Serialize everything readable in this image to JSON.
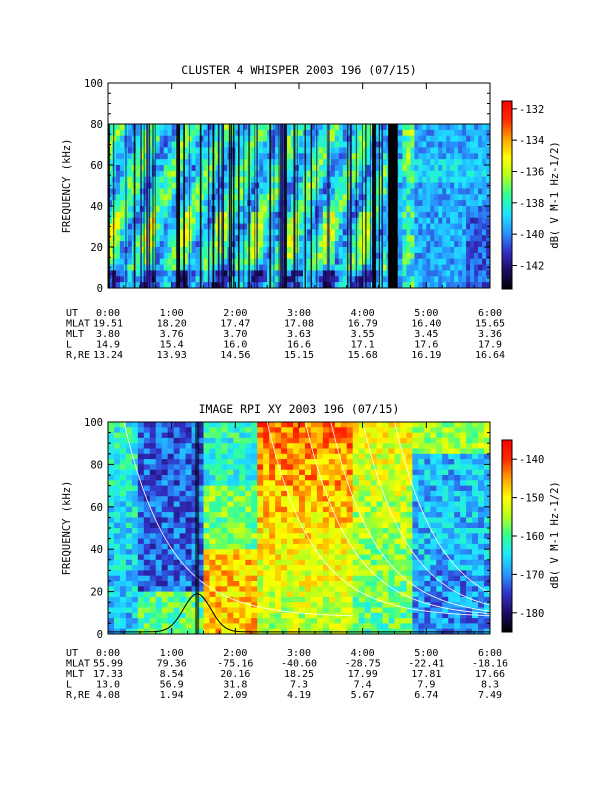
{
  "colors": {
    "palette": [
      "#000000",
      "#1e0a64",
      "#3232c8",
      "#2896ff",
      "#1ee6ff",
      "#32ff96",
      "#b4ff1e",
      "#ffff00",
      "#ffa000",
      "#ff2800",
      "#ff0000"
    ],
    "axes": "#000000",
    "overlay_lines": "#ffffff"
  },
  "chart_data": [
    {
      "type": "heatmap",
      "title": "CLUSTER 4 WHISPER 2003 196 (07/15)",
      "ylabel": "FREQUENCY (kHz)",
      "ylim": [
        0,
        100
      ],
      "yticks": [
        "0",
        "20",
        "40",
        "60",
        "80",
        "100"
      ],
      "data_extent_khz": [
        0,
        80
      ],
      "xlim_hours": [
        0,
        6
      ],
      "colorbar": {
        "label": "dB( V M-1 Hz-1/2)",
        "range": [
          -143.5,
          -131.5
        ],
        "ticks": [
          "-132",
          "-134",
          "-136",
          "-138",
          "-140",
          "-142"
        ],
        "tick_values": [
          -132,
          -134,
          -136,
          -138,
          -140,
          -142
        ]
      },
      "gap_hours": [
        4.4,
        4.55
      ],
      "ephemeris": {
        "labels": [
          "UT",
          "MLAT",
          "MLT",
          "L",
          "R,RE"
        ],
        "rows": [
          [
            "0:00",
            "1:00",
            "2:00",
            "3:00",
            "4:00",
            "5:00",
            "6:00"
          ],
          [
            "19.51",
            "18.20",
            "17.47",
            "17.08",
            "16.79",
            "16.40",
            "15.65"
          ],
          [
            "3.80",
            "3.76",
            "3.70",
            "3.63",
            "3.55",
            "3.45",
            "3.36"
          ],
          [
            "14.9",
            "15.4",
            "16.0",
            "16.6",
            "17.1",
            "17.6",
            "17.9"
          ],
          [
            "13.24",
            "13.93",
            "14.56",
            "15.15",
            "15.68",
            "16.19",
            "16.64"
          ]
        ]
      }
    },
    {
      "type": "heatmap",
      "title": "IMAGE RPI XY 2003 196 (07/15)",
      "ylabel": "FREQUENCY (kHz)",
      "ylim": [
        0,
        100
      ],
      "yticks": [
        "0",
        "20",
        "40",
        "60",
        "80",
        "100"
      ],
      "xlim_hours": [
        0,
        6
      ],
      "colorbar": {
        "label": "dB( V M-1 Hz-1/2)",
        "range": [
          -185,
          -135
        ],
        "ticks": [
          "-140",
          "-150",
          "-160",
          "-170",
          "-180"
        ],
        "tick_values": [
          -140,
          -150,
          -160,
          -170,
          -180
        ]
      },
      "overlay_curve_peak": {
        "hour": 1.4,
        "khz": 19
      },
      "ephemeris": {
        "labels": [
          "UT",
          "MLAT",
          "MLT",
          "L",
          "R,RE"
        ],
        "rows": [
          [
            "0:00",
            "1:00",
            "2:00",
            "3:00",
            "4:00",
            "5:00",
            "6:00"
          ],
          [
            "55.99",
            "79.36",
            "-75.16",
            "-40.60",
            "-28.75",
            "-22.41",
            "-18.16"
          ],
          [
            "17.33",
            "8.54",
            "20.16",
            "18.25",
            "17.99",
            "17.81",
            "17.66"
          ],
          [
            "13.0",
            "56.9",
            "31.8",
            "7.3",
            "7.4",
            "7.9",
            "8.3"
          ],
          [
            "4.08",
            "1.94",
            "2.09",
            "4.19",
            "5.67",
            "6.74",
            "7.49"
          ]
        ]
      }
    }
  ]
}
